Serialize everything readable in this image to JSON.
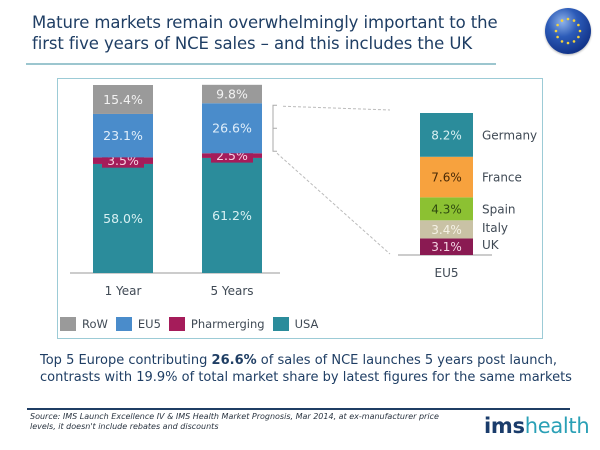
{
  "slide": {
    "title": "Mature markets remain overwhelmingly important to the first five years of NCE sales – and this includes the UK",
    "badge_icon": "eu-flag-icon",
    "callout": {
      "prefix": "Top 5 Europe contributing ",
      "highlight": "26.6%",
      "suffix": " of sales of NCE launches 5 years post launch, contrasts with 19.9% of total market share by latest figures for the same markets"
    },
    "source": "Source: IMS Launch Excellence IV & IMS Health Market Prognosis, Mar 2014, at ex-manufacturer price levels, it doesn't include rebates and discounts",
    "logo": {
      "bold": "ims",
      "light": "health"
    }
  },
  "chart_data": [
    {
      "type": "bar",
      "stacked": true,
      "title": "",
      "xlabel": "",
      "ylabel": "",
      "categories": [
        "1 Year",
        "5 Years"
      ],
      "series": [
        {
          "name": "USA",
          "values": [
            58.0,
            61.2
          ],
          "labels": [
            "58.0%",
            "61.2%"
          ],
          "color": "#2b8c9b",
          "label_color": "#d8f0f2"
        },
        {
          "name": "Pharmerging",
          "values": [
            3.5,
            2.5
          ],
          "labels": [
            "3.5%",
            "2.5%"
          ],
          "color": "#a51c5a",
          "label_color": "#f7cfe0"
        },
        {
          "name": "EU5",
          "values": [
            23.1,
            26.6
          ],
          "labels": [
            "23.1%",
            "26.6%"
          ],
          "color": "#4a8ccb",
          "label_color": "#e0eefa"
        },
        {
          "name": "RoW",
          "values": [
            15.4,
            9.8
          ],
          "labels": [
            "15.4%",
            "9.8%"
          ],
          "color": "#9a9a9a",
          "label_color": "#f2f2f2"
        }
      ],
      "legend": [
        "RoW",
        "EU5",
        "Pharmerging",
        "USA"
      ],
      "legend_position": "bottom-left",
      "ylim": [
        0,
        100
      ],
      "grid": false
    },
    {
      "type": "bar",
      "stacked": true,
      "title": "",
      "categories": [
        "EU5"
      ],
      "series": [
        {
          "name": "UK",
          "values": [
            3.1
          ],
          "labels": [
            "3.1%"
          ],
          "color": "#8a1a52",
          "label_color": "#f3d4e2"
        },
        {
          "name": "Italy",
          "values": [
            3.4
          ],
          "labels": [
            "3.4%"
          ],
          "color": "#c9c2a5",
          "label_color": "#f5f2e6"
        },
        {
          "name": "Spain",
          "values": [
            4.3
          ],
          "labels": [
            "4.3%"
          ],
          "color": "#8cc132",
          "label_color": "#2f4a10"
        },
        {
          "name": "France",
          "values": [
            7.6
          ],
          "labels": [
            "7.6%"
          ],
          "color": "#f7a23e",
          "label_color": "#4a2a06"
        },
        {
          "name": "Germany",
          "values": [
            8.2
          ],
          "labels": [
            "8.2%"
          ],
          "color": "#2b8c9b",
          "label_color": "#d8f0f2"
        }
      ],
      "total": 26.6,
      "connector": "breakdown of EU5 segment of 5 Years bar",
      "grid": false
    }
  ]
}
